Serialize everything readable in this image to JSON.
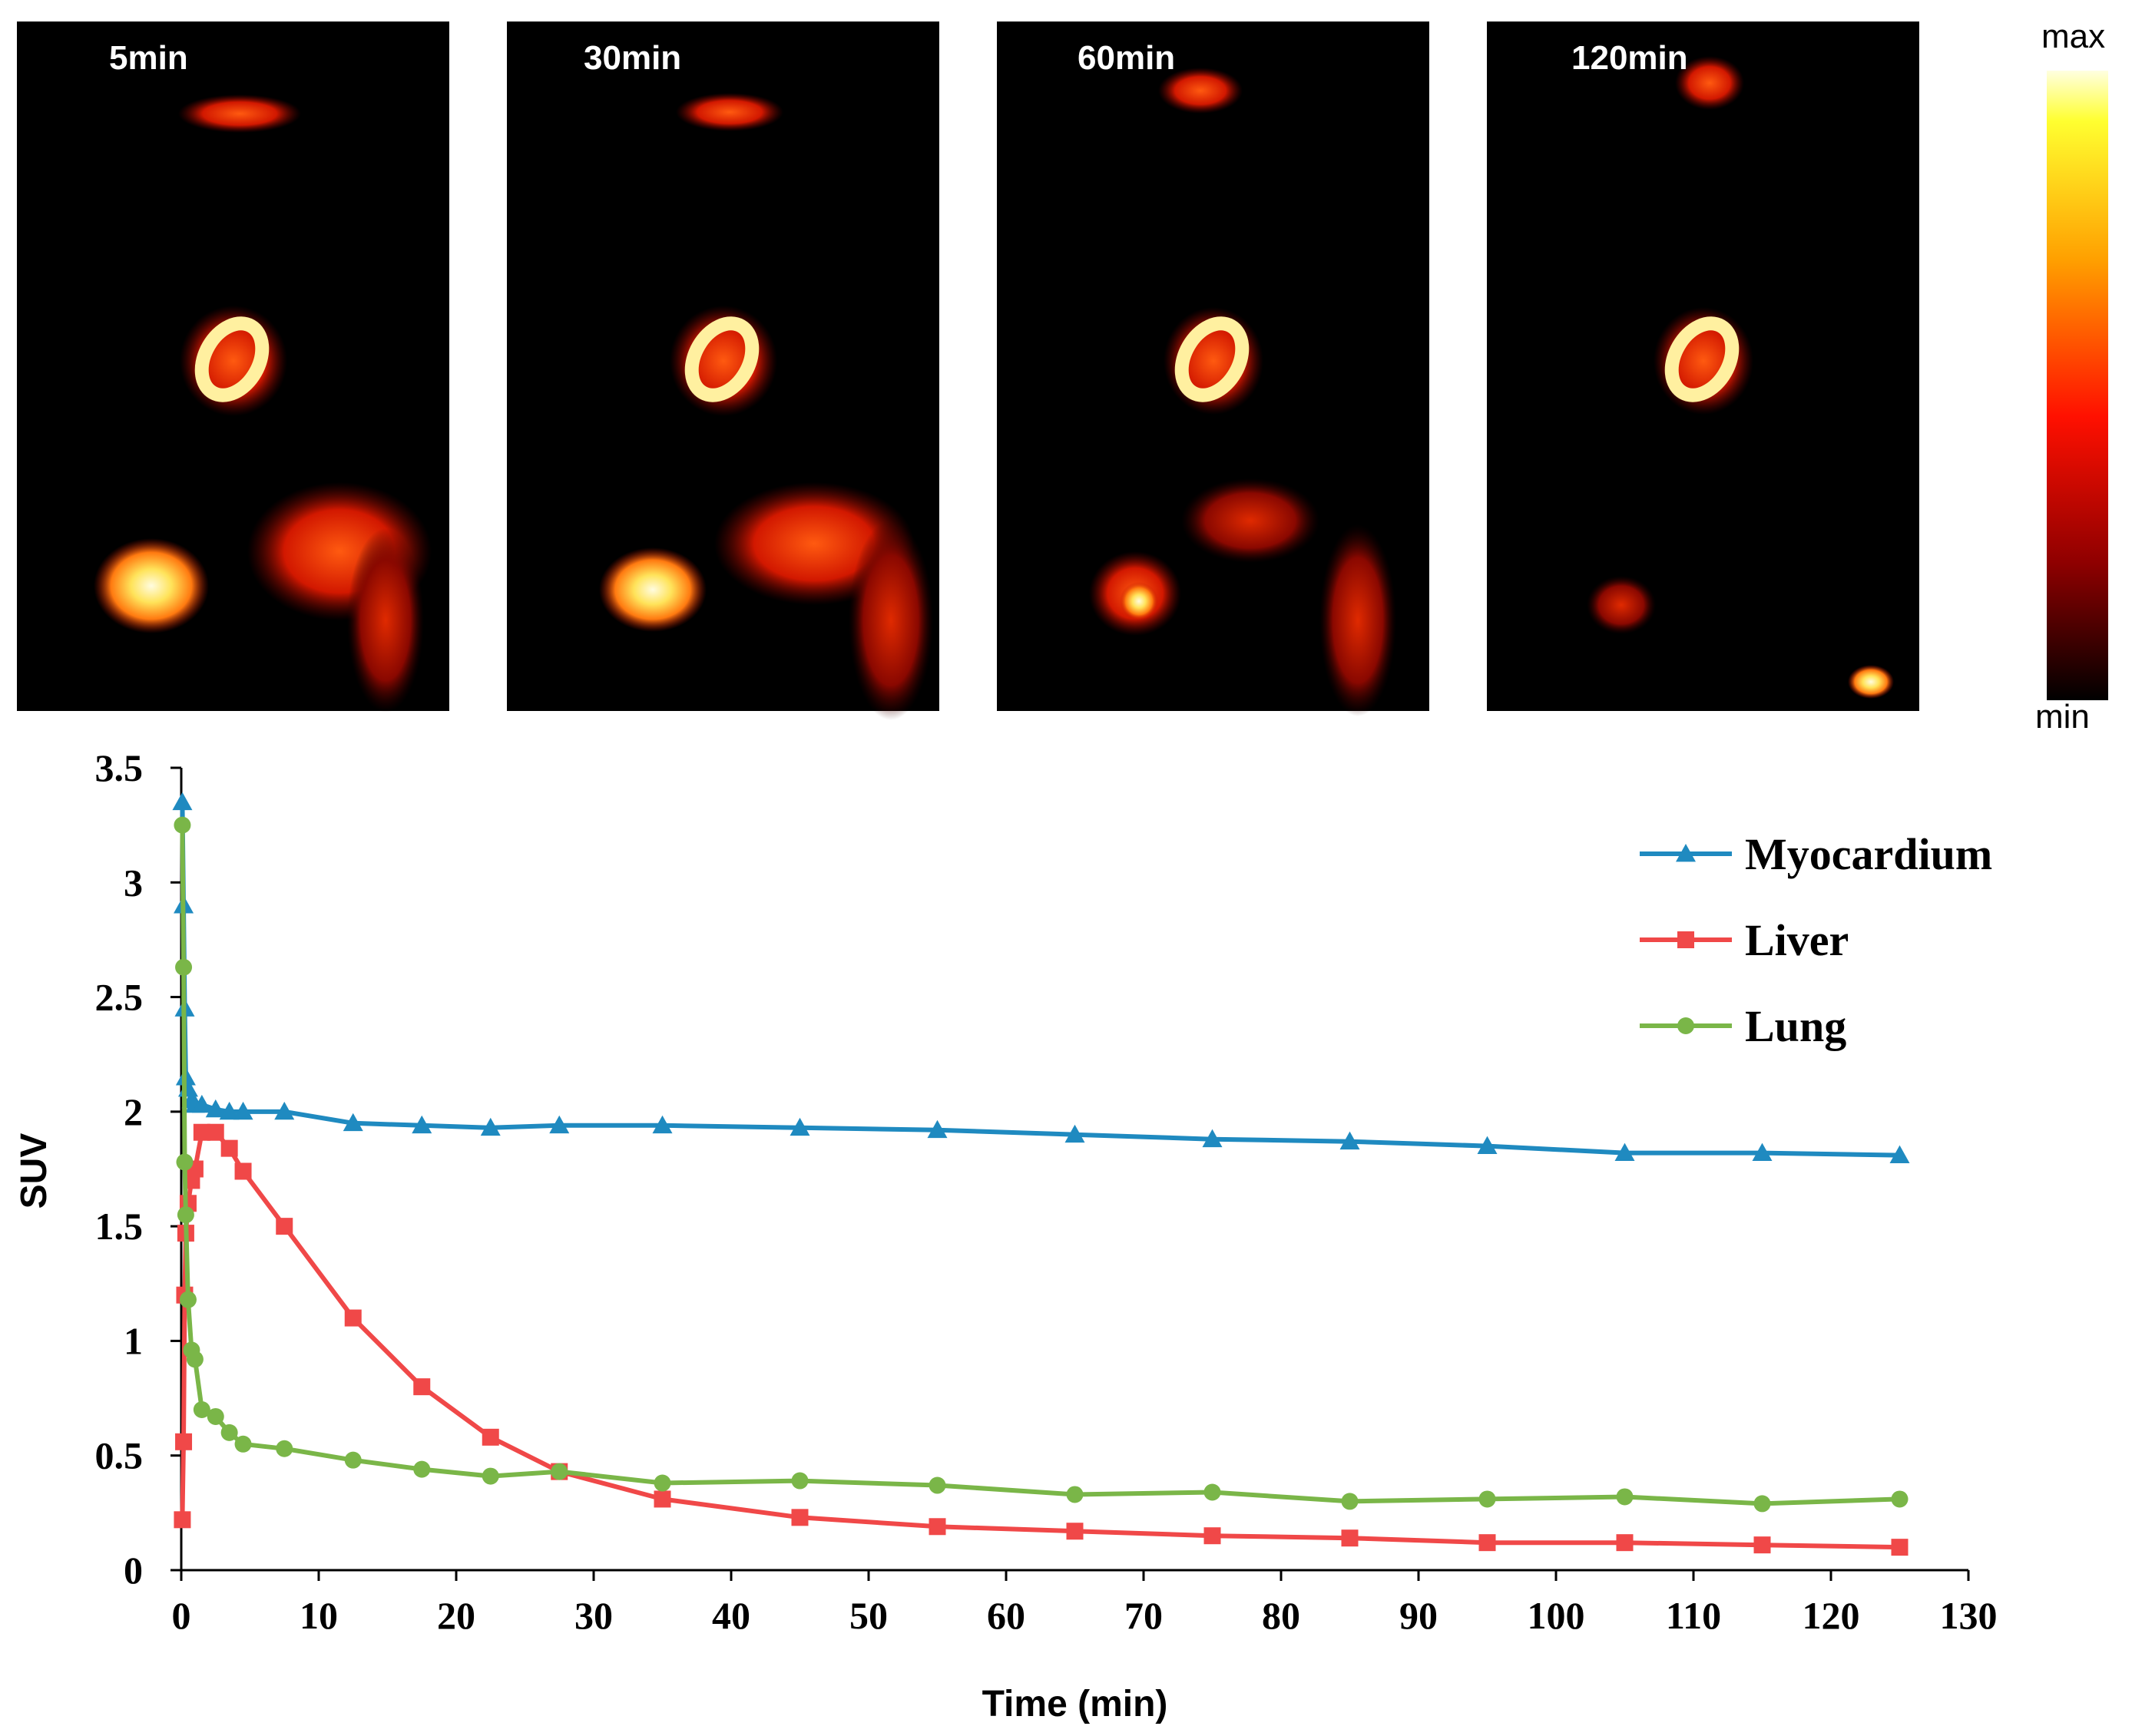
{
  "panels": [
    {
      "label": "5min"
    },
    {
      "label": "30min"
    },
    {
      "label": "60min"
    },
    {
      "label": "120min"
    }
  ],
  "colorbar": {
    "max_label": "max",
    "min_label": "min"
  },
  "chart_data": {
    "type": "line",
    "title": "",
    "xlabel": "Time (min)",
    "ylabel": "SUV",
    "xlim": [
      0,
      130
    ],
    "ylim": [
      0,
      3.5
    ],
    "xticks": [
      0,
      10,
      20,
      30,
      40,
      50,
      60,
      70,
      80,
      90,
      100,
      110,
      120,
      130
    ],
    "yticks": [
      0,
      0.5,
      1,
      1.5,
      2,
      2.5,
      3,
      3.5
    ],
    "ytick_labels": [
      "0",
      "0.5",
      "1",
      "1.5",
      "2",
      "2.5",
      "3",
      "3.5"
    ],
    "grid": false,
    "legend_position": "top-right",
    "series": [
      {
        "name": "Myocardium",
        "color": "#1f8ac0",
        "marker": "triangle",
        "x": [
          0.08,
          0.17,
          0.25,
          0.33,
          0.5,
          0.75,
          1.0,
          1.5,
          2.5,
          3.5,
          4.5,
          7.5,
          12.5,
          17.5,
          22.5,
          27.5,
          35,
          45,
          55,
          65,
          75,
          85,
          95,
          105,
          115,
          125
        ],
        "y": [
          3.35,
          2.9,
          2.45,
          2.15,
          2.1,
          2.05,
          2.03,
          2.03,
          2.01,
          2.0,
          2.0,
          2.0,
          1.95,
          1.94,
          1.93,
          1.94,
          1.94,
          1.93,
          1.92,
          1.9,
          1.88,
          1.87,
          1.85,
          1.82,
          1.82,
          1.81
        ]
      },
      {
        "name": "Liver",
        "color": "#f04848",
        "marker": "square",
        "x": [
          0.08,
          0.17,
          0.25,
          0.33,
          0.5,
          0.75,
          1.0,
          1.5,
          2.5,
          3.5,
          4.5,
          7.5,
          12.5,
          17.5,
          22.5,
          27.5,
          35,
          45,
          55,
          65,
          75,
          85,
          95,
          105,
          115,
          125
        ],
        "y": [
          0.22,
          0.56,
          1.2,
          1.47,
          1.6,
          1.7,
          1.75,
          1.91,
          1.91,
          1.84,
          1.74,
          1.5,
          1.1,
          0.8,
          0.58,
          0.43,
          0.31,
          0.23,
          0.19,
          0.17,
          0.15,
          0.14,
          0.12,
          0.12,
          0.11,
          0.1
        ]
      },
      {
        "name": "Lung",
        "color": "#7ab648",
        "marker": "circle",
        "x": [
          0.08,
          0.17,
          0.25,
          0.33,
          0.5,
          0.75,
          1.0,
          1.5,
          2.5,
          3.5,
          4.5,
          7.5,
          12.5,
          17.5,
          22.5,
          27.5,
          35,
          45,
          55,
          65,
          75,
          85,
          95,
          105,
          115,
          125
        ],
        "y": [
          3.25,
          2.63,
          1.78,
          1.55,
          1.18,
          0.96,
          0.92,
          0.7,
          0.67,
          0.6,
          0.55,
          0.53,
          0.48,
          0.44,
          0.41,
          0.43,
          0.38,
          0.39,
          0.37,
          0.33,
          0.34,
          0.3,
          0.31,
          0.32,
          0.29,
          0.31
        ]
      }
    ]
  }
}
